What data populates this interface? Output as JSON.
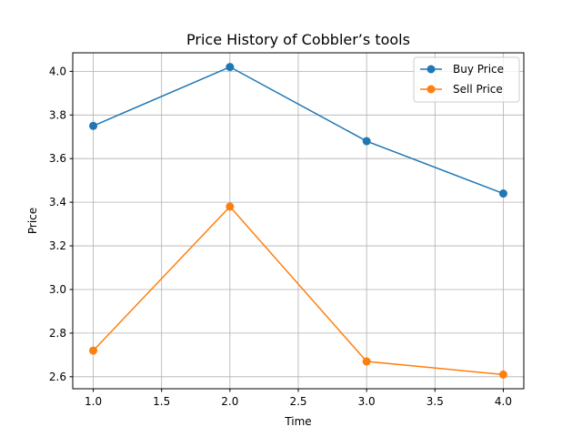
{
  "chart_data": {
    "type": "line",
    "title": "Price History of Cobbler’s tools",
    "xlabel": "Time",
    "ylabel": "Price",
    "x": [
      1,
      2,
      3,
      4
    ],
    "xlim": [
      0.85,
      4.15
    ],
    "ylim": [
      2.545,
      4.085
    ],
    "xticks": [
      1.0,
      1.5,
      2.0,
      2.5,
      3.0,
      3.5,
      4.0
    ],
    "xtick_labels": [
      "1.0",
      "1.5",
      "2.0",
      "2.5",
      "3.0",
      "3.5",
      "4.0"
    ],
    "yticks": [
      2.6,
      2.8,
      3.0,
      3.2,
      3.4,
      3.6,
      3.8,
      4.0
    ],
    "ytick_labels": [
      "2.6",
      "2.8",
      "3.0",
      "3.2",
      "3.4",
      "3.6",
      "3.8",
      "4.0"
    ],
    "grid": true,
    "legend_position": "top-right",
    "series": [
      {
        "name": "Buy Price",
        "values": [
          3.75,
          4.02,
          3.68,
          3.44
        ],
        "color": "#1f77b4"
      },
      {
        "name": "Sell Price",
        "values": [
          2.72,
          3.38,
          2.67,
          2.61
        ],
        "color": "#ff7f0e"
      }
    ]
  }
}
